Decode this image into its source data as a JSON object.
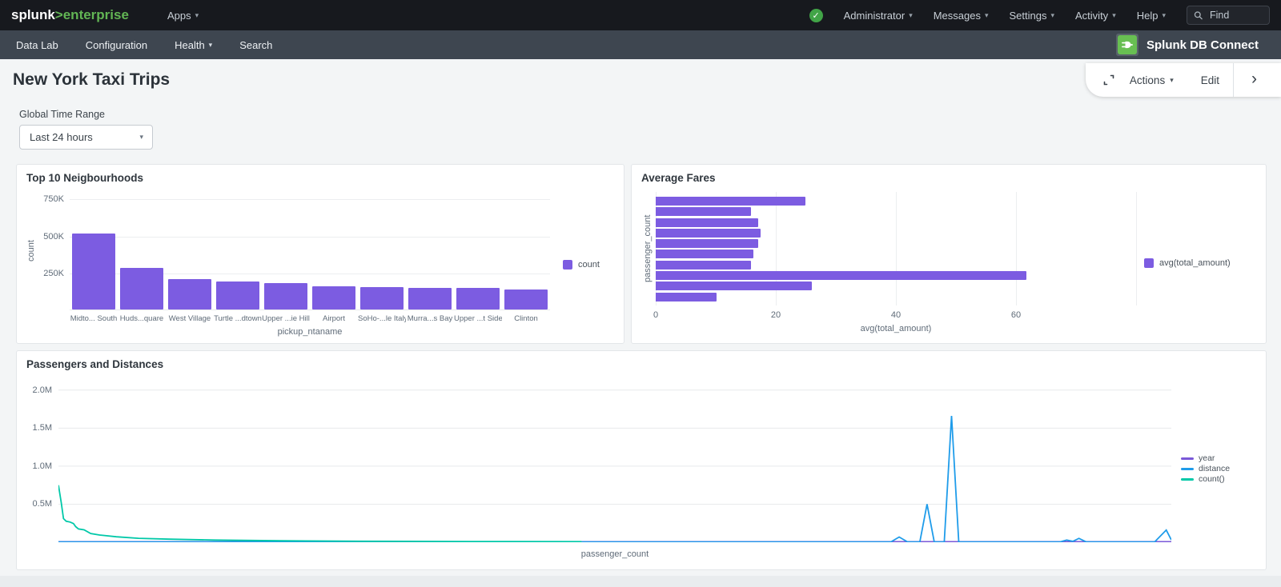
{
  "glyphs": {
    "caret": "▾",
    "chevron": "›",
    "check": "✓"
  },
  "colors": {
    "accent_purple": "#7c5ce1",
    "line_year": "#7a58d8",
    "line_distance": "#1f9cea",
    "line_count": "#00c8a8",
    "brand_green": "#62b554",
    "status_green": "#41a447",
    "db_icon_green": "#68bf52"
  },
  "topnav": {
    "logo_main": "splunk",
    "logo_sub": ">enterprise",
    "apps_label": "Apps",
    "menus": [
      {
        "label": "Administrator"
      },
      {
        "label": "Messages"
      },
      {
        "label": "Settings"
      },
      {
        "label": "Activity"
      },
      {
        "label": "Help"
      }
    ],
    "find_placeholder": "Find"
  },
  "appnav": {
    "items": [
      {
        "label": "Data Lab"
      },
      {
        "label": "Configuration"
      },
      {
        "label": "Health"
      },
      {
        "label": "Search"
      }
    ],
    "app_name": "Splunk DB Connect"
  },
  "toolbar": {
    "actions_label": "Actions",
    "edit_label": "Edit"
  },
  "page": {
    "title": "New York Taxi Trips",
    "time_range_label": "Global Time Range",
    "time_range_value": "Last 24 hours"
  },
  "chart_data": [
    {
      "type": "bar",
      "title": "Top 10 Neigbourhoods",
      "categories": [
        "Midto... South",
        "Huds...quare",
        "West Village",
        "Turtle ...dtown",
        "Upper ...ie Hill",
        "Airport",
        "SoHo-...le Italy",
        "Murra...s Bay",
        "Upper ...t Side",
        "Clinton"
      ],
      "values": [
        515000,
        280000,
        205000,
        190000,
        180000,
        158000,
        152000,
        148000,
        145000,
        135000
      ],
      "xlabel": "pickup_ntaname",
      "ylabel": "count",
      "legend": [
        "count"
      ],
      "legend_position": "right",
      "bar_color": "#7c5ce1",
      "ylim": [
        0,
        800000
      ],
      "yticks": [
        {
          "v": 250000,
          "label": "250K"
        },
        {
          "v": 500000,
          "label": "500K"
        },
        {
          "v": 750000,
          "label": "750K"
        }
      ],
      "grid": true
    },
    {
      "type": "bar",
      "orientation": "horizontal",
      "title": "Average Fares",
      "values": [
        24.9,
        15.8,
        17.0,
        17.4,
        17.1,
        16.2,
        15.8,
        61.7,
        26.0,
        10.1
      ],
      "xlabel": "avg(total_amount)",
      "ylabel": "passenger_count",
      "legend": [
        "avg(total_amount)"
      ],
      "legend_position": "right",
      "bar_color": "#7c5ce1",
      "xlim": [
        0,
        80
      ],
      "xticks": [
        {
          "v": 0,
          "label": "0"
        },
        {
          "v": 20,
          "label": "20"
        },
        {
          "v": 40,
          "label": "40"
        },
        {
          "v": 60,
          "label": "60"
        },
        {
          "v": 80,
          "label": ""
        }
      ],
      "grid": true
    },
    {
      "type": "line",
      "title": "Passengers and Distances",
      "xlabel": "passenger_count",
      "ylim": [
        0,
        2.05
      ],
      "y_unit": "M",
      "yticks": [
        {
          "v": 0.5,
          "label": "0.5M"
        },
        {
          "v": 1.0,
          "label": "1.0M"
        },
        {
          "v": 1.5,
          "label": "1.5M"
        },
        {
          "v": 2.0,
          "label": "2.0M"
        }
      ],
      "legend_position": "right",
      "grid": true,
      "series": [
        {
          "name": "year",
          "color": "#7a58d8",
          "points": [
            [
              0,
              0.006
            ],
            [
              1,
              0.006
            ]
          ]
        },
        {
          "name": "distance",
          "color": "#1f9cea",
          "points": [
            [
              0,
              0.004
            ],
            [
              0.7,
              0.004
            ],
            [
              0.748,
              0.004
            ],
            [
              0.7555,
              0.068
            ],
            [
              0.763,
              0.004
            ],
            [
              0.774,
              0.004
            ],
            [
              0.7805,
              0.5
            ],
            [
              0.787,
              0.004
            ],
            [
              0.796,
              0.004
            ],
            [
              0.8025,
              1.66
            ],
            [
              0.809,
              0.004
            ],
            [
              0.87,
              0.004
            ],
            [
              0.9,
              0.004
            ],
            [
              0.906,
              0.028
            ],
            [
              0.9115,
              0.012
            ],
            [
              0.917,
              0.05
            ],
            [
              0.9235,
              0.004
            ],
            [
              0.975,
              0.004
            ],
            [
              0.985,
              0.004
            ],
            [
              0.9955,
              0.16
            ],
            [
              1,
              0.03
            ]
          ]
        },
        {
          "name": "count()",
          "color": "#00c8a8",
          "points": [
            [
              0,
              0.75
            ],
            [
              0.0025,
              0.52
            ],
            [
              0.0045,
              0.31
            ],
            [
              0.007,
              0.275
            ],
            [
              0.0105,
              0.265
            ],
            [
              0.0135,
              0.245
            ],
            [
              0.0155,
              0.205
            ],
            [
              0.018,
              0.175
            ],
            [
              0.023,
              0.163
            ],
            [
              0.029,
              0.115
            ],
            [
              0.037,
              0.095
            ],
            [
              0.052,
              0.072
            ],
            [
              0.072,
              0.052
            ],
            [
              0.1,
              0.04
            ],
            [
              0.14,
              0.028
            ],
            [
              0.2,
              0.019
            ],
            [
              0.27,
              0.013
            ],
            [
              0.37,
              0.009
            ],
            [
              0.47,
              0.007
            ]
          ]
        }
      ]
    }
  ]
}
